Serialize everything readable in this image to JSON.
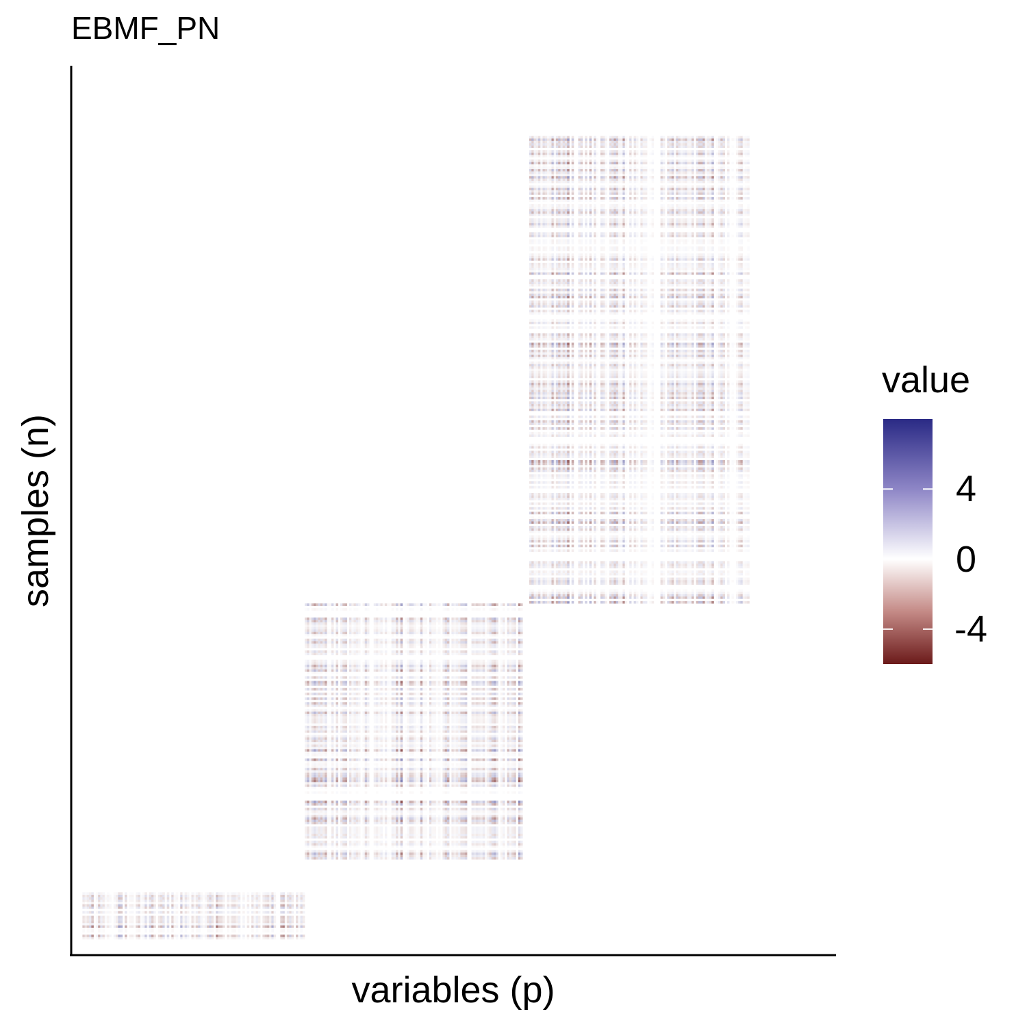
{
  "chart_data": {
    "type": "heatmap",
    "title": "EBMF_PN",
    "xlabel": "variables (p)",
    "ylabel": "samples (n)",
    "legend": {
      "title": "value",
      "ticks": [
        "4",
        "0",
        "-4"
      ],
      "tick_values": [
        4,
        0,
        -4
      ],
      "range": [
        -6,
        8
      ],
      "low_color": "#6b1a1a",
      "mid_color": "#ffffff",
      "high_color": "#2a2a85",
      "placement": "right"
    },
    "grid": false,
    "blocks": [
      {
        "name": "block-1",
        "variables": [
          1,
          100
        ],
        "samples": [
          1,
          22
        ]
      },
      {
        "name": "block-2",
        "variables": [
          101,
          200
        ],
        "samples": [
          36,
          145
        ]
      },
      {
        "name": "block-3",
        "variables": [
          201,
          300
        ],
        "samples": [
          146,
          345
        ]
      }
    ],
    "xlim": [
      1,
      333
    ],
    "ylim": [
      1,
      368
    ]
  }
}
